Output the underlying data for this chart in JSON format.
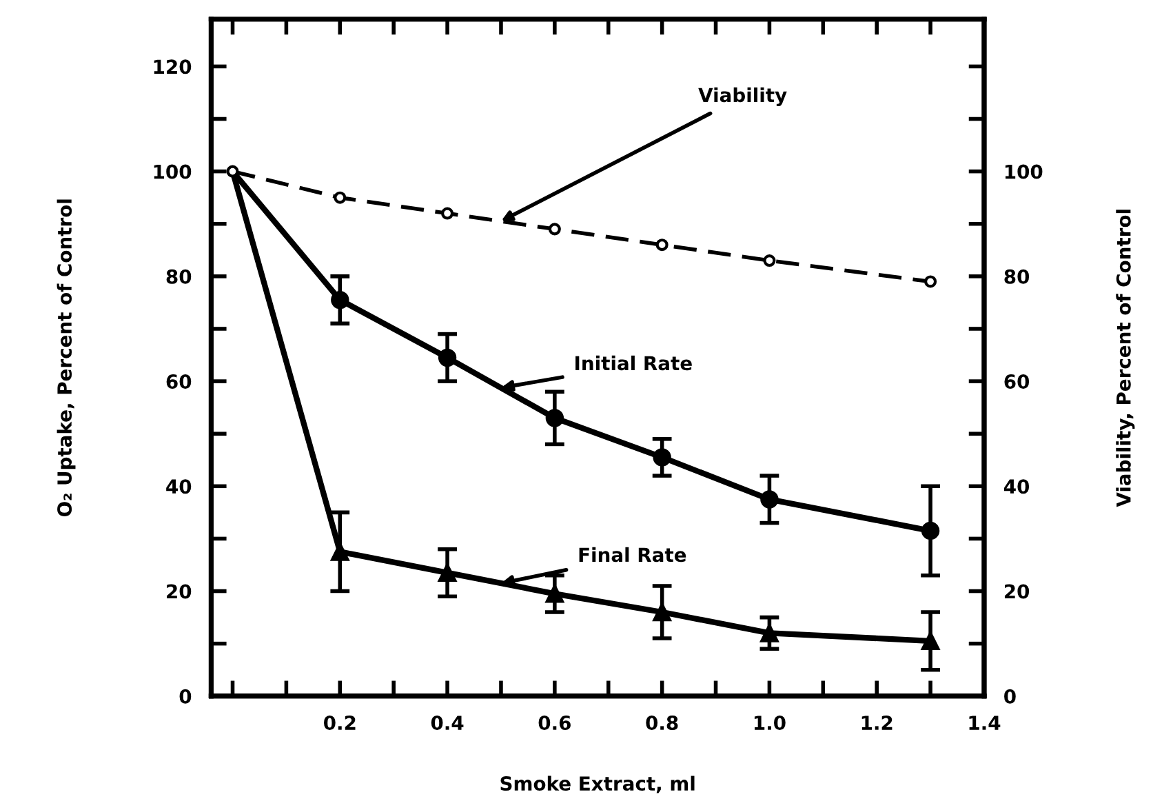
{
  "chart_data": {
    "type": "line",
    "xlabel": "Smoke Extract, ml",
    "ylabel": "O₂ Uptake, Percent of Control",
    "y2label": "Viability, Percent of Control",
    "x": [
      0,
      0.2,
      0.4,
      0.6,
      0.8,
      1.0,
      1.3
    ],
    "series": [
      {
        "name": "Viability",
        "color": "#000000",
        "axis": "y2",
        "line_style": "dashed",
        "marker": "circle",
        "values": [
          100,
          95,
          92,
          89,
          86,
          83,
          79
        ]
      },
      {
        "name": "Initial Rate",
        "color": "#000000",
        "line_style": "solid",
        "marker": "circle",
        "values": [
          100,
          75.5,
          64.5,
          53,
          45.5,
          37.5,
          31.5
        ],
        "errors": [
          null,
          4.5,
          4.5,
          5,
          3.5,
          4.5,
          8.5
        ]
      },
      {
        "name": "Final Rate",
        "color": "#000000",
        "line_style": "solid",
        "marker": "triangle",
        "values": [
          100,
          27.5,
          23.5,
          19.5,
          16,
          12,
          10.5
        ],
        "errors": [
          null,
          7.5,
          4.5,
          3.5,
          5,
          3,
          5.5
        ]
      }
    ],
    "xlim": [
      -0.04,
      1.4
    ],
    "xticks": [
      {
        "value": 0,
        "label": null
      },
      {
        "value": 0.1,
        "label": null
      },
      {
        "value": 0.2,
        "label": "0.2"
      },
      {
        "value": 0.3,
        "label": null
      },
      {
        "value": 0.4,
        "label": "0.4"
      },
      {
        "value": 0.5,
        "label": null
      },
      {
        "value": 0.6,
        "label": "0.6"
      },
      {
        "value": 0.7,
        "label": null
      },
      {
        "value": 0.8,
        "label": "0.8"
      },
      {
        "value": 0.9,
        "label": null
      },
      {
        "value": 1.0,
        "label": "1.0"
      },
      {
        "value": 1.1,
        "label": null
      },
      {
        "value": 1.2,
        "label": "1.2"
      },
      {
        "value": 1.3,
        "label": null
      },
      {
        "value": 1.4,
        "label": "1.4"
      }
    ],
    "ylim": [
      0,
      129
    ],
    "yticks": [
      0,
      {
        "value": 10,
        "label": null
      },
      20,
      {
        "value": 30,
        "label": null
      },
      40,
      {
        "value": 50,
        "label": null
      },
      60,
      {
        "value": 70,
        "label": null
      },
      80,
      {
        "value": 90,
        "label": null
      },
      100,
      {
        "value": 110,
        "label": null
      },
      120
    ],
    "y2lim": [
      0,
      129
    ],
    "y2ticks": [
      0,
      {
        "value": 10,
        "label": null
      },
      20,
      {
        "value": 30,
        "label": null
      },
      40,
      {
        "value": 50,
        "label": null
      },
      60,
      {
        "value": 70,
        "label": null
      },
      80,
      {
        "value": 90,
        "label": null
      },
      100,
      {
        "value": 110,
        "label": null
      },
      {
        "value": 120,
        "label": null
      }
    ],
    "grid": false,
    "legend": false
  }
}
